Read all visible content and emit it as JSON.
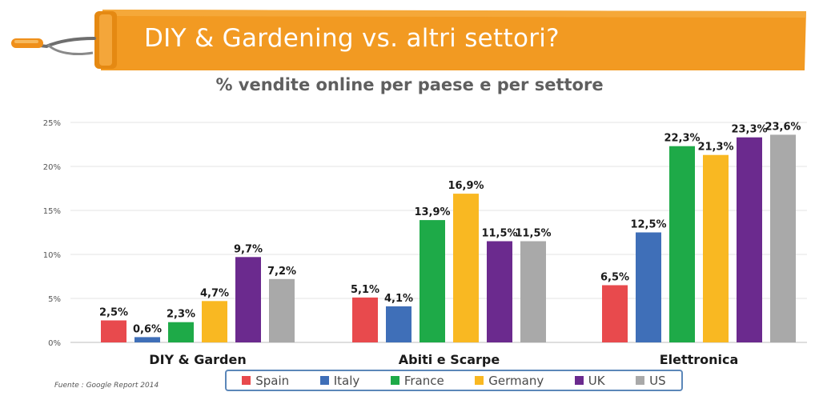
{
  "header": {
    "title": "DIY & Gardening vs. altri settori?",
    "subtitle": "% vendite online per paese e per settore"
  },
  "source": "Fuente : Google Report 2014",
  "colors": {
    "banner": "#f29a22",
    "Spain": "#e84a4d",
    "Italy": "#3f6fb8",
    "France": "#1eaa48",
    "Germany": "#f9b822",
    "UK": "#6b2a8e",
    "US": "#a9a9a9"
  },
  "icons": {
    "banner": "paint-roller-icon"
  },
  "chart_data": {
    "type": "bar",
    "categories": [
      "DIY & Garden",
      "Abiti e Scarpe",
      "Elettronica"
    ],
    "series": [
      {
        "name": "Spain",
        "values": [
          2.5,
          5.1,
          6.5
        ],
        "labels": [
          "2,5%",
          "5,1%",
          "6,5%"
        ]
      },
      {
        "name": "Italy",
        "values": [
          0.6,
          4.1,
          12.5
        ],
        "labels": [
          "0,6%",
          "4,1%",
          "12,5%"
        ]
      },
      {
        "name": "France",
        "values": [
          2.3,
          13.9,
          22.3
        ],
        "labels": [
          "2,3%",
          "13,9%",
          "22,3%"
        ]
      },
      {
        "name": "Germany",
        "values": [
          4.7,
          16.9,
          21.3
        ],
        "labels": [
          "4,7%",
          "16,9%",
          "21,3%"
        ]
      },
      {
        "name": "UK",
        "values": [
          9.7,
          11.5,
          23.3
        ],
        "labels": [
          "9,7%",
          "11,5%",
          "23,3%"
        ]
      },
      {
        "name": "US",
        "values": [
          7.2,
          11.5,
          23.6
        ],
        "labels": [
          "7,2%",
          "11,5%",
          "23,6%"
        ]
      }
    ],
    "title": "% vendite online per paese e per settore",
    "ylim": [
      0,
      25
    ],
    "yticks": [
      0,
      5,
      10,
      15,
      20,
      25
    ],
    "ytick_labels": [
      "0%",
      "5%",
      "10%",
      "15%",
      "20%",
      "25%"
    ],
    "grid": true,
    "legend_position": "bottom"
  }
}
